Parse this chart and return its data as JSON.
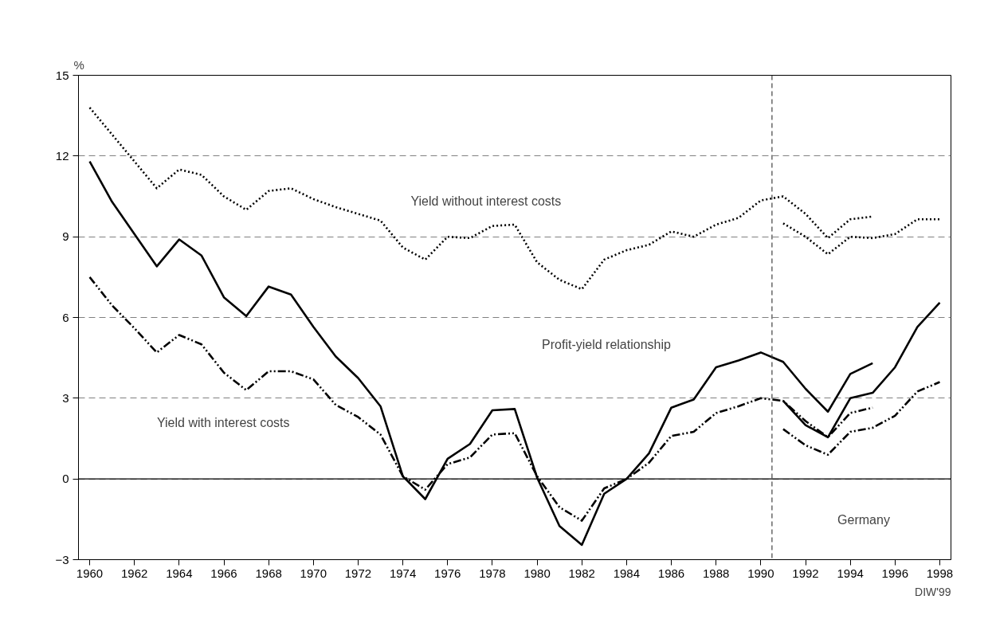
{
  "chart_data": {
    "type": "line",
    "ylabel": "%",
    "xlim": [
      1959.5,
      1998.5
    ],
    "xticks": [
      1960,
      1962,
      1964,
      1966,
      1968,
      1970,
      1972,
      1974,
      1976,
      1978,
      1980,
      1982,
      1984,
      1986,
      1988,
      1990,
      1992,
      1994,
      1996,
      1998
    ],
    "ylim": [
      -3,
      15
    ],
    "yticks": [
      -3,
      0,
      3,
      6,
      9,
      12,
      15
    ],
    "grid": "y",
    "series": [
      {
        "color": "#000000",
        "line_style": "dotted",
        "x": [
          1960,
          1961,
          1962,
          1963,
          1964,
          1965,
          1966,
          1967,
          1968,
          1969,
          1970,
          1971,
          1972,
          1973,
          1974,
          1975,
          1976,
          1977,
          1978,
          1979,
          1980,
          1981,
          1982,
          1983,
          1984,
          1985,
          1986,
          1987,
          1988,
          1989,
          1990,
          1991,
          1992,
          1993,
          1994,
          1995
        ],
        "values": [
          13.8,
          12.8,
          11.8,
          10.8,
          11.5,
          11.3,
          10.5,
          10.0,
          10.7,
          10.8,
          10.4,
          10.1,
          9.85,
          9.6,
          8.6,
          8.15,
          9.0,
          8.95,
          9.4,
          9.45,
          8.05,
          7.4,
          7.05,
          8.15,
          8.5,
          8.7,
          9.2,
          9.0,
          9.45,
          9.7,
          10.35,
          10.5,
          9.85,
          8.95,
          9.65,
          9.75
        ]
      },
      {
        "color": "#000000",
        "line_style": "dotted",
        "x": [
          1991,
          1992,
          1993,
          1994,
          1995,
          1996,
          1997,
          1998
        ],
        "values": [
          9.5,
          9.0,
          8.35,
          9.0,
          8.95,
          9.1,
          9.65,
          9.65
        ]
      },
      {
        "color": "#000000",
        "line_style": "solid",
        "x": [
          1960,
          1961,
          1962,
          1963,
          1964,
          1965,
          1966,
          1967,
          1968,
          1969,
          1970,
          1971,
          1972,
          1973,
          1974,
          1975,
          1976,
          1977,
          1978,
          1979,
          1980,
          1981,
          1982,
          1983,
          1984,
          1985,
          1986,
          1987,
          1988,
          1989,
          1990,
          1991,
          1992,
          1993,
          1994,
          1995
        ],
        "values": [
          11.8,
          10.3,
          9.1,
          7.9,
          8.9,
          8.3,
          6.75,
          6.05,
          7.15,
          6.85,
          5.65,
          4.55,
          3.75,
          2.7,
          0.1,
          -0.75,
          0.75,
          1.3,
          2.55,
          2.6,
          0.05,
          -1.75,
          -2.45,
          -0.55,
          0.0,
          0.95,
          2.65,
          2.95,
          4.15,
          4.4,
          4.7,
          4.35,
          3.35,
          2.5,
          3.9,
          4.3
        ]
      },
      {
        "color": "#000000",
        "line_style": "solid",
        "x": [
          1991,
          1992,
          1993,
          1994,
          1995,
          1996,
          1997,
          1998
        ],
        "values": [
          2.9,
          2.0,
          1.55,
          3.0,
          3.2,
          4.15,
          5.65,
          6.55
        ]
      },
      {
        "color": "#000000",
        "line_style": "dashdotdot",
        "x": [
          1960,
          1961,
          1962,
          1963,
          1964,
          1965,
          1966,
          1967,
          1968,
          1969,
          1970,
          1971,
          1972,
          1973,
          1974,
          1975,
          1976,
          1977,
          1978,
          1979,
          1980,
          1981,
          1982,
          1983,
          1984,
          1985,
          1986,
          1987,
          1988,
          1989,
          1990,
          1991,
          1992,
          1993,
          1994,
          1995
        ],
        "values": [
          7.5,
          6.45,
          5.6,
          4.7,
          5.35,
          5.0,
          3.95,
          3.3,
          4.0,
          4.0,
          3.7,
          2.75,
          2.3,
          1.65,
          0.1,
          -0.4,
          0.55,
          0.8,
          1.65,
          1.7,
          0.1,
          -1.05,
          -1.55,
          -0.35,
          0.0,
          0.6,
          1.6,
          1.75,
          2.45,
          2.7,
          3.0,
          2.9,
          2.15,
          1.55,
          2.45,
          2.65
        ]
      },
      {
        "color": "#000000",
        "line_style": "dashdotdot",
        "x": [
          1991,
          1992,
          1993,
          1994,
          1995,
          1996,
          1997,
          1998
        ],
        "values": [
          1.85,
          1.25,
          0.9,
          1.75,
          1.9,
          2.35,
          3.25,
          3.6
        ]
      }
    ],
    "ref_lines": [
      {
        "axis": "y",
        "value": 0,
        "color": "#000000",
        "line_style": "solid"
      },
      {
        "axis": "x",
        "value": 1990.5,
        "color": "#404040",
        "line_style": "dashed"
      }
    ],
    "annotations": [
      "Yield without interest costs",
      "Profit-yield relationship",
      "Yield with interest costs",
      "Germany",
      "DIW'99"
    ]
  }
}
